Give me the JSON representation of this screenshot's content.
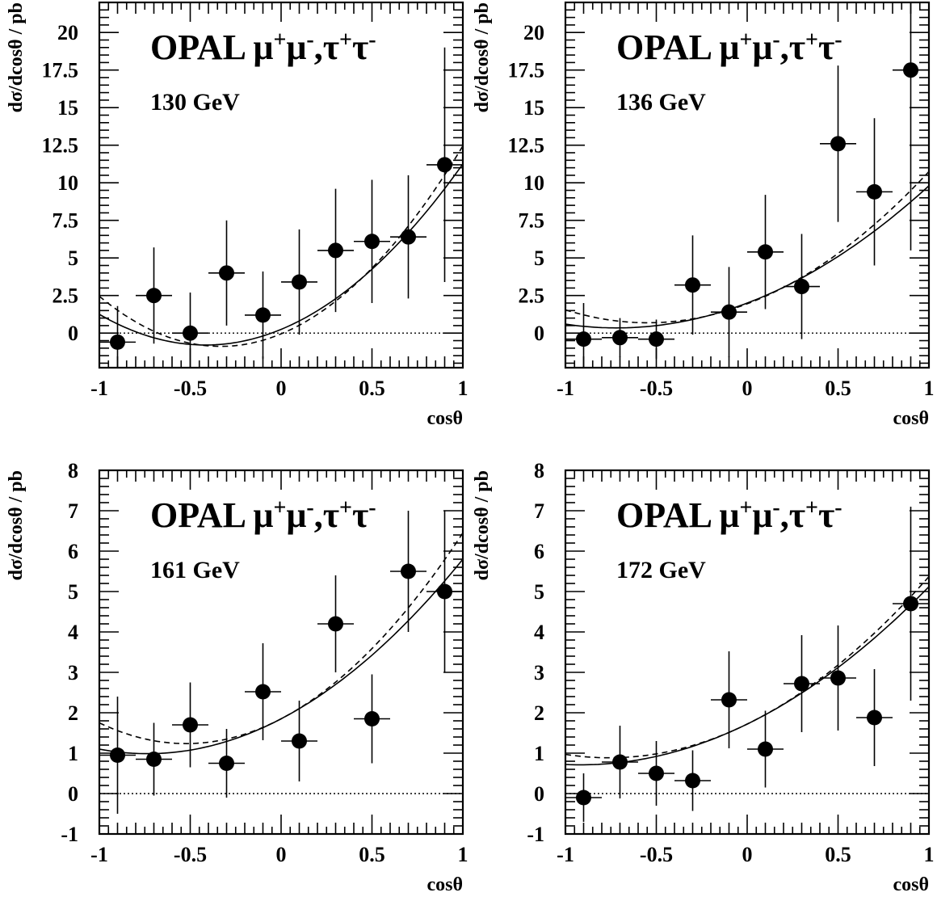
{
  "chart_data": [
    {
      "type": "scatter",
      "title": "OPAL μ+μ-,τ+τ-",
      "energy_label": "130 GeV",
      "xlabel": "cosθ",
      "ylabel": "dσ/dcosθ / pb",
      "xlim": [
        -1,
        1
      ],
      "ylim": [
        -2.3,
        22
      ],
      "xticks": [
        -1,
        -0.5,
        0,
        0.5,
        1
      ],
      "xtick_labels": [
        "-1",
        "-0.5",
        "0",
        "0.5",
        "1"
      ],
      "yticks": [
        0,
        2.5,
        5,
        7.5,
        10,
        12.5,
        15,
        17.5,
        20
      ],
      "ytick_labels": [
        "0",
        "2.5",
        "5",
        "7.5",
        "10",
        "12.5",
        "15",
        "17.5",
        "20"
      ],
      "x_bin_halfwidth": 0.1,
      "points": [
        {
          "x": -0.9,
          "y": -0.6,
          "err": 2.4
        },
        {
          "x": -0.7,
          "y": 2.5,
          "err": 3.2
        },
        {
          "x": -0.5,
          "y": 0.0,
          "err": 2.7
        },
        {
          "x": -0.3,
          "y": 4.0,
          "err": 3.5
        },
        {
          "x": -0.1,
          "y": 1.2,
          "err": 2.9
        },
        {
          "x": 0.1,
          "y": 3.4,
          "err": 3.5
        },
        {
          "x": 0.3,
          "y": 5.5,
          "err": 4.1
        },
        {
          "x": 0.5,
          "y": 6.1,
          "err": 4.1
        },
        {
          "x": 0.7,
          "y": 6.4,
          "err": 4.1
        },
        {
          "x": 0.9,
          "y": 11.2,
          "err": 7.8
        }
      ],
      "curves": [
        {
          "style": "solid",
          "a": 0.25,
          "b": 5.0,
          "c": 6.0
        },
        {
          "style": "dashed",
          "a": -0.05,
          "b": 5.0,
          "c": 7.5
        }
      ]
    },
    {
      "type": "scatter",
      "title": "OPAL μ+μ-,τ+τ-",
      "energy_label": "136 GeV",
      "xlabel": "cosθ",
      "ylabel": "dσ/dcosθ / pb",
      "xlim": [
        -1,
        1
      ],
      "ylim": [
        -2.3,
        22
      ],
      "xticks": [
        -1,
        -0.5,
        0,
        0.5,
        1
      ],
      "xtick_labels": [
        "-1",
        "-0.5",
        "0",
        "0.5",
        "1"
      ],
      "yticks": [
        0,
        2.5,
        5,
        7.5,
        10,
        12.5,
        15,
        17.5,
        20
      ],
      "ytick_labels": [
        "0",
        "2.5",
        "5",
        "7.5",
        "10",
        "12.5",
        "15",
        "17.5",
        "20"
      ],
      "x_bin_halfwidth": 0.1,
      "points": [
        {
          "x": -0.9,
          "y": -0.4,
          "err": 2.4
        },
        {
          "x": -0.7,
          "y": -0.3,
          "err": 1.3
        },
        {
          "x": -0.5,
          "y": -0.4,
          "err": 1.3
        },
        {
          "x": -0.3,
          "y": 3.2,
          "err": 3.3
        },
        {
          "x": -0.1,
          "y": 1.4,
          "err": 3.0
        },
        {
          "x": 0.1,
          "y": 5.4,
          "err": 3.8
        },
        {
          "x": 0.3,
          "y": 3.1,
          "err": 3.5
        },
        {
          "x": 0.5,
          "y": 12.6,
          "err": 5.2
        },
        {
          "x": 0.7,
          "y": 9.4,
          "err": 4.9
        },
        {
          "x": 0.9,
          "y": 17.5,
          "err": 12.0
        }
      ],
      "curves": [
        {
          "style": "solid",
          "a": 2.0,
          "b": 4.6,
          "c": 3.2
        },
        {
          "style": "dashed",
          "a": 1.95,
          "b": 4.6,
          "c": 4.2
        }
      ]
    },
    {
      "type": "scatter",
      "title": "OPAL μ+μ-,τ+τ-",
      "energy_label": "161 GeV",
      "xlabel": "cosθ",
      "ylabel": "dσ/dcosθ / pb",
      "xlim": [
        -1,
        1
      ],
      "ylim": [
        -1,
        8
      ],
      "xticks": [
        -1,
        -0.5,
        0,
        0.5,
        1
      ],
      "xtick_labels": [
        "-1",
        "-0.5",
        "0",
        "0.5",
        "1"
      ],
      "yticks": [
        -1,
        0,
        1,
        2,
        3,
        4,
        5,
        6,
        7,
        8
      ],
      "ytick_labels": [
        "-1",
        "0",
        "1",
        "2",
        "3",
        "4",
        "5",
        "6",
        "7",
        "8"
      ],
      "x_bin_halfwidth": 0.1,
      "points": [
        {
          "x": -0.9,
          "y": 0.95,
          "err": 1.45
        },
        {
          "x": -0.7,
          "y": 0.85,
          "err": 0.9
        },
        {
          "x": -0.5,
          "y": 1.7,
          "err": 1.05
        },
        {
          "x": -0.3,
          "y": 0.75,
          "err": 0.85
        },
        {
          "x": -0.1,
          "y": 2.52,
          "err": 1.2
        },
        {
          "x": 0.1,
          "y": 1.3,
          "err": 1.0
        },
        {
          "x": 0.3,
          "y": 4.2,
          "err": 1.2
        },
        {
          "x": 0.5,
          "y": 1.85,
          "err": 1.1
        },
        {
          "x": 0.7,
          "y": 5.5,
          "err": 1.5
        },
        {
          "x": 0.9,
          "y": 5.0,
          "err": 2.0
        }
      ],
      "curves": [
        {
          "style": "solid",
          "a": 1.85,
          "b": 2.35,
          "c": 1.6
        },
        {
          "style": "dashed",
          "a": 1.85,
          "b": 2.35,
          "c": 2.25
        }
      ]
    },
    {
      "type": "scatter",
      "title": "OPAL μ+μ-,τ+τ-",
      "energy_label": "172 GeV",
      "xlabel": "cosθ",
      "ylabel": "dσ/dcosθ / pb",
      "xlim": [
        -1,
        1
      ],
      "ylim": [
        -1,
        8
      ],
      "xticks": [
        -1,
        -0.5,
        0,
        0.5,
        1
      ],
      "xtick_labels": [
        "-1",
        "-0.5",
        "0",
        "0.5",
        "1"
      ],
      "yticks": [
        -1,
        0,
        1,
        2,
        3,
        4,
        5,
        6,
        7,
        8
      ],
      "ytick_labels": [
        "-1",
        "0",
        "1",
        "2",
        "3",
        "4",
        "5",
        "6",
        "7",
        "8"
      ],
      "x_bin_halfwidth": 0.1,
      "points": [
        {
          "x": -0.9,
          "y": -0.1,
          "err": 0.6
        },
        {
          "x": -0.7,
          "y": 0.78,
          "err": 0.9
        },
        {
          "x": -0.5,
          "y": 0.5,
          "err": 0.8
        },
        {
          "x": -0.3,
          "y": 0.32,
          "err": 0.75
        },
        {
          "x": -0.1,
          "y": 2.32,
          "err": 1.2
        },
        {
          "x": 0.1,
          "y": 1.1,
          "err": 0.95
        },
        {
          "x": 0.3,
          "y": 2.72,
          "err": 1.2
        },
        {
          "x": 0.5,
          "y": 2.86,
          "err": 1.3
        },
        {
          "x": 0.7,
          "y": 1.88,
          "err": 1.2
        },
        {
          "x": 0.9,
          "y": 4.7,
          "err": 2.4
        }
      ],
      "curves": [
        {
          "style": "solid",
          "a": 1.72,
          "b": 2.2,
          "c": 1.2
        },
        {
          "style": "dashed",
          "a": 1.72,
          "b": 2.2,
          "c": 1.45
        }
      ]
    }
  ]
}
